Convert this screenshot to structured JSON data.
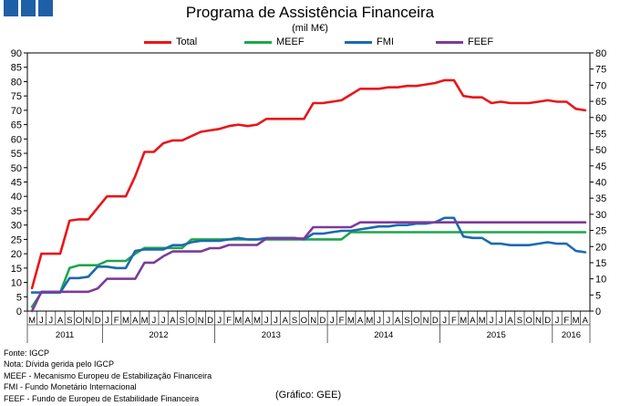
{
  "chart_data": {
    "type": "line",
    "title": "Programa de Assistência Financeira",
    "subtitle": "(mil M€)",
    "left_axis": {
      "min": 0,
      "max": 90,
      "step": 5,
      "ticks": [
        "0",
        "5",
        "10",
        "15",
        "20",
        "25",
        "30",
        "35",
        "40",
        "45",
        "50",
        "55",
        "60",
        "65",
        "70",
        "75",
        "80",
        "85",
        "90"
      ]
    },
    "right_axis": {
      "min": 0,
      "max": 80,
      "step": 5,
      "ticks": [
        "0",
        "5",
        "10",
        "15",
        "20",
        "25",
        "30",
        "35",
        "40",
        "45",
        "50",
        "55",
        "60",
        "65",
        "70",
        "75",
        "80"
      ]
    },
    "month_labels": [
      "M",
      "J",
      "J",
      "A",
      "S",
      "O",
      "N",
      "D",
      "J",
      "F",
      "M",
      "A",
      "M",
      "J",
      "J",
      "A",
      "S",
      "O",
      "N",
      "D",
      "J",
      "F",
      "M",
      "A",
      "M",
      "J",
      "J",
      "A",
      "S",
      "O",
      "N",
      "D",
      "J",
      "F",
      "M",
      "A",
      "M",
      "J",
      "J",
      "A",
      "S",
      "O",
      "N",
      "D",
      "J",
      "F",
      "M",
      "A",
      "M",
      "J",
      "J",
      "A",
      "S",
      "O",
      "N",
      "D",
      "J",
      "F",
      "M",
      "A"
    ],
    "years": [
      {
        "label": "2011",
        "start": 0,
        "end": 8
      },
      {
        "label": "2012",
        "start": 8,
        "end": 20
      },
      {
        "label": "2013",
        "start": 20,
        "end": 32
      },
      {
        "label": "2014",
        "start": 32,
        "end": 44
      },
      {
        "label": "2015",
        "start": 44,
        "end": 56
      },
      {
        "label": "2016",
        "start": 56,
        "end": 60
      }
    ],
    "series": [
      {
        "name": "Total",
        "color": "#e8161b",
        "axis": "left",
        "values": [
          8,
          20,
          20,
          20,
          31.5,
          32,
          32,
          36,
          40,
          40,
          40,
          47,
          55.5,
          55.5,
          58.5,
          59.5,
          59.5,
          61,
          62.5,
          63,
          63.5,
          64.5,
          65,
          64.5,
          65,
          67,
          67,
          67,
          67,
          67,
          72.5,
          72.5,
          73,
          73.5,
          75.5,
          77.5,
          77.5,
          77.5,
          78,
          78,
          78.5,
          78.5,
          79,
          79.5,
          80.5,
          80.5,
          75,
          74.5,
          74.5,
          72.5,
          73,
          72.5,
          72.5,
          72.5,
          73,
          73.5,
          73,
          73,
          70.5,
          70
        ]
      },
      {
        "name": "MEEF",
        "color": "#1ea64b",
        "axis": "left",
        "values": [
          1.5,
          6.5,
          6.5,
          6.5,
          15,
          16,
          16,
          16,
          17.5,
          17.5,
          17.5,
          20,
          22,
          22,
          22,
          22,
          22,
          25,
          25,
          25,
          25,
          25,
          25,
          25,
          25,
          25,
          25,
          25,
          25,
          25,
          25,
          25,
          25,
          25,
          27.5,
          27.5,
          27.5,
          27.5,
          27.5,
          27.5,
          27.5,
          27.5,
          27.5,
          27.5,
          27.5,
          27.5,
          27.5,
          27.5,
          27.5,
          27.5,
          27.5,
          27.5,
          27.5,
          27.5,
          27.5,
          27.5,
          27.5,
          27.5,
          27.5,
          27.5
        ]
      },
      {
        "name": "FMI",
        "color": "#1c6ab0",
        "axis": "left",
        "values": [
          6.5,
          6.5,
          6.5,
          6.5,
          11.5,
          11.5,
          12,
          15.5,
          15.5,
          15,
          15,
          21,
          21.5,
          21.5,
          21.5,
          23,
          23,
          24,
          24.5,
          24.5,
          24.5,
          25,
          25.5,
          25,
          25,
          25.5,
          25.5,
          25.5,
          25.5,
          25,
          27,
          27,
          27.5,
          28,
          28,
          28.5,
          29,
          29.5,
          29.5,
          30,
          30,
          30.5,
          30.5,
          31,
          32.5,
          32.5,
          26,
          25.5,
          25.5,
          23.5,
          23.5,
          23,
          23,
          23,
          23.5,
          24,
          23.5,
          23.5,
          21,
          20.5
        ]
      },
      {
        "name": "FEEF",
        "color": "#7b3c98",
        "axis": "right",
        "values": [
          0,
          6,
          6,
          6,
          6,
          6,
          6,
          7,
          10,
          10,
          10,
          10,
          15,
          15,
          17,
          18.5,
          18.5,
          18.5,
          18.5,
          19.5,
          19.5,
          20.5,
          20.5,
          20.5,
          20.5,
          22.5,
          22.5,
          22.5,
          22.5,
          22.5,
          26,
          26,
          26,
          26,
          26,
          27.5,
          27.5,
          27.5,
          27.5,
          27.5,
          27.5,
          27.5,
          27.5,
          27.5,
          27.5,
          27.5,
          27.5,
          27.5,
          27.5,
          27.5,
          27.5,
          27.5,
          27.5,
          27.5,
          27.5,
          27.5,
          27.5,
          27.5,
          27.5,
          27.5
        ]
      }
    ]
  },
  "notes": [
    "Fonte: IGCP",
    "Nota: Dívida gerida pelo IGCP",
    "MEEF - Mecanismo Europeu de Estabilização Financeira",
    "FMI - Fundo Monetário Internacional",
    "FEEF - Fundo de Europeu de Estabilidade Financeira"
  ],
  "credit": "(Gráfico: GEE)"
}
